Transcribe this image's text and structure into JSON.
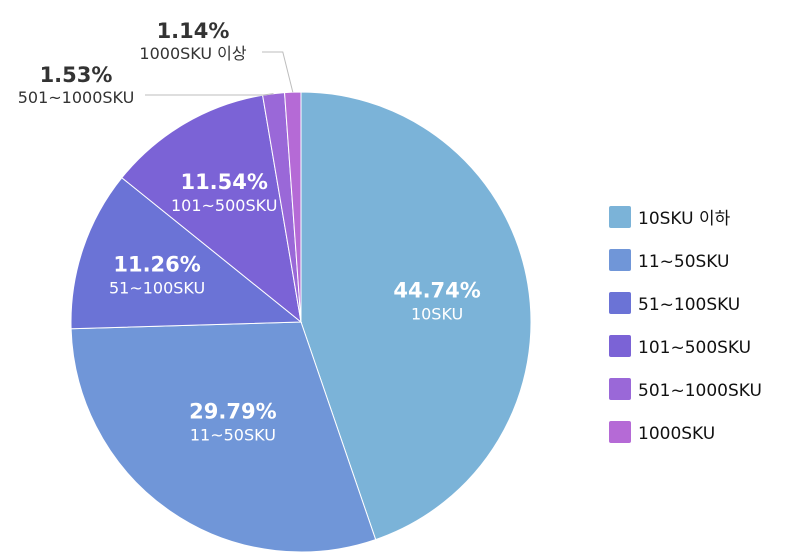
{
  "chart_data": {
    "type": "pie",
    "title": "",
    "start_angle_deg": 0,
    "direction": "clockwise",
    "slices": [
      {
        "label": "10SKU",
        "legend": "10SKU 이하",
        "value": 44.74,
        "value_text": "44.74%",
        "color": "#7bb3d8"
      },
      {
        "label": "11~50SKU",
        "legend": "11~50SKU",
        "value": 29.79,
        "value_text": "29.79%",
        "color": "#7096d8"
      },
      {
        "label": "51~100SKU",
        "legend": "51~100SKU",
        "value": 11.26,
        "value_text": "11.26%",
        "color": "#6b73d6"
      },
      {
        "label": "101~500SKU",
        "legend": "101~500SKU",
        "value": 11.54,
        "value_text": "11.54%",
        "color": "#7b63d6"
      },
      {
        "label": "501~1000SKU",
        "legend": "501~1000SKU",
        "value": 1.53,
        "value_text": "1.53%",
        "color": "#9a68d8"
      },
      {
        "label": "1000SKU 이상",
        "legend": "1000SKU",
        "value": 1.14,
        "value_text": "1.14%",
        "color": "#b56ad6"
      }
    ],
    "legend_position": "right"
  }
}
